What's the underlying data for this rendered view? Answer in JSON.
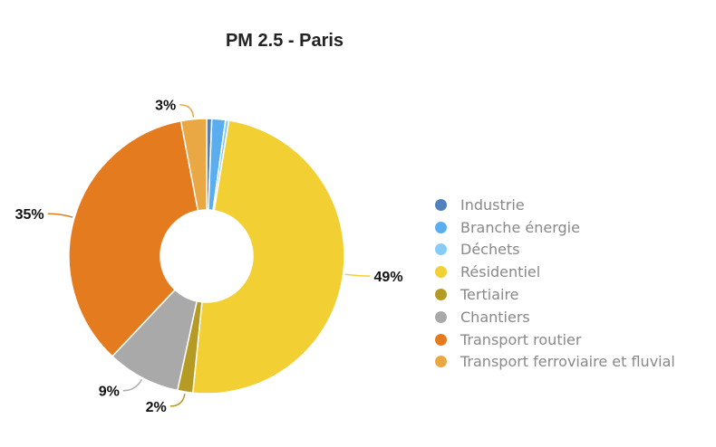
{
  "chart_data": {
    "type": "pie",
    "variant": "donut",
    "title": "PM 2.5 - Paris",
    "legend_position": "right",
    "slices": [
      {
        "name": "Industrie",
        "value": 0.6,
        "color": "#4f81bd",
        "label": ""
      },
      {
        "name": "Branche énergie",
        "value": 1.6,
        "color": "#5aaef0",
        "label": ""
      },
      {
        "name": "Déchets",
        "value": 0.4,
        "color": "#86ccf7",
        "label": ""
      },
      {
        "name": "Résidentiel",
        "value": 49,
        "color": "#f2cf33",
        "label": "49%"
      },
      {
        "name": "Tertiaire",
        "value": 1.8,
        "color": "#b59b24",
        "label": "2%"
      },
      {
        "name": "Chantiers",
        "value": 8.6,
        "color": "#a9a9a9",
        "label": "9%"
      },
      {
        "name": "Transport routier",
        "value": 35,
        "color": "#e47b1e",
        "label": "35%"
      },
      {
        "name": "Transport ferroviaire et fluvial",
        "value": 3,
        "color": "#eaa845",
        "label": "3%"
      }
    ]
  }
}
